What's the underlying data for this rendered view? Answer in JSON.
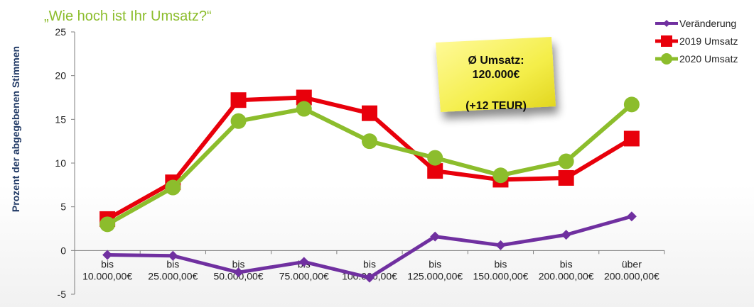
{
  "chart_data": {
    "type": "line",
    "title": "„Wie hoch ist Ihr Umsatz?“",
    "ylabel": "Prozent der abgegebenen Stimmen",
    "xlabel": "",
    "ylim": [
      -5,
      25
    ],
    "yticks": [
      "25",
      "20",
      "15",
      "10",
      "5",
      "0",
      "-5"
    ],
    "categories": [
      [
        "bis",
        "10.000,00€"
      ],
      [
        "bis",
        "25.000,00€"
      ],
      [
        "bis",
        "50.000,00€"
      ],
      [
        "bis",
        "75.000,00€"
      ],
      [
        "bis",
        "100.000,00€"
      ],
      [
        "bis",
        "125.000,00€"
      ],
      [
        "bis",
        "150.000,00€"
      ],
      [
        "bis",
        "200.000,00€"
      ],
      [
        "über",
        "200.000,00€"
      ]
    ],
    "series": [
      {
        "name": "Veränderung",
        "color": "#7030a0",
        "marker": "diamond",
        "values": [
          -0.5,
          -0.6,
          -2.5,
          -1.3,
          -3.1,
          1.6,
          0.6,
          1.8,
          3.9
        ]
      },
      {
        "name": "2019 Umsatz",
        "color": "#e8000b",
        "marker": "square",
        "values": [
          3.6,
          7.8,
          17.2,
          17.5,
          15.7,
          9.1,
          8.1,
          8.3,
          12.8
        ]
      },
      {
        "name": "2020 Umsatz",
        "color": "#8cbd2c",
        "marker": "circle",
        "values": [
          3.0,
          7.2,
          14.8,
          16.2,
          12.5,
          10.6,
          8.6,
          10.2,
          16.7
        ]
      }
    ],
    "legend_position": "top-right",
    "grid": false
  },
  "sticky_note": {
    "line1": "Ø Umsatz:",
    "line2": "120.000€",
    "line3": "(+12 TEUR)",
    "color": "#f2ec3a"
  }
}
